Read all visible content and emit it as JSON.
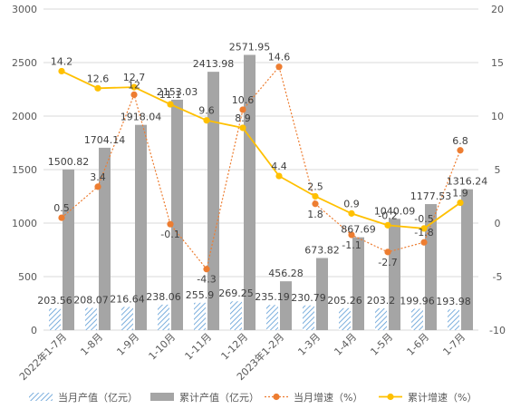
{
  "chart_data": {
    "type": "bar",
    "categories": [
      "2022年1-7月",
      "1-8月",
      "1-9月",
      "1-10月",
      "1-11月",
      "1-12月",
      "2023年1-2月",
      "1-3月",
      "1-4月",
      "1-5月",
      "1-6月",
      "1-7月"
    ],
    "series": [
      {
        "name": "当月产值（亿元）",
        "kind": "bar",
        "axis": "left",
        "color": "#5b9bd5",
        "values": [
          203.56,
          208.07,
          216.64,
          238.06,
          255.9,
          269.25,
          235.19,
          230.79,
          205.26,
          203.2,
          199.96,
          193.98
        ],
        "labels": [
          "203.56",
          "208.07",
          "216.64",
          "238.06",
          "255.9",
          "269.25",
          "235.19",
          "230.79",
          "205.26",
          "203.2",
          "199.96",
          "193.98"
        ]
      },
      {
        "name": "累计产值（亿元）",
        "kind": "bar",
        "axis": "left",
        "color": "#a5a5a5",
        "values": [
          1500.82,
          1704.14,
          1918.04,
          2153.03,
          2413.98,
          2571.95,
          456.28,
          673.82,
          867.69,
          1040.09,
          1177.53,
          1316.24
        ],
        "labels": [
          "1500.82",
          "1704.14",
          "1918.04",
          "2153.03",
          "2413.98",
          "2571.95",
          "456.28",
          "673.82",
          "867.69",
          "1040.09",
          "1177.53",
          "1316.24"
        ]
      },
      {
        "name": "当月增速（%）",
        "kind": "line",
        "axis": "right",
        "color": "#ed7d31",
        "values": [
          0.5,
          3.4,
          12,
          -0.1,
          -4.3,
          10.6,
          14.6,
          1.8,
          -1.1,
          -2.7,
          -1.8,
          6.8
        ],
        "labels": [
          "0.5",
          "3.4",
          "12",
          "-0.1",
          "-4.3",
          "10.6",
          "14.6",
          "1.8",
          "-1.1",
          "-2.7",
          "-1.8",
          "6.8"
        ]
      },
      {
        "name": "累计增速（%）",
        "kind": "line",
        "axis": "right",
        "color": "#ffc000",
        "values": [
          14.2,
          12.6,
          12.7,
          11.1,
          9.6,
          8.9,
          4.4,
          2.5,
          0.9,
          -0.2,
          -0.5,
          1.9
        ],
        "labels": [
          "14.2",
          "12.6",
          "12.7",
          "11.1",
          "9.6",
          "8.9",
          "4.4",
          "2.5",
          "0.9",
          "-0.2",
          "-0.5",
          "1.9"
        ]
      }
    ],
    "y_left": {
      "min": 0,
      "max": 3000,
      "ticks": [
        "0",
        "500",
        "1000",
        "1500",
        "2000",
        "2500",
        "3000"
      ]
    },
    "y_right": {
      "min": -10,
      "max": 20,
      "ticks": [
        "-10",
        "-5",
        "0",
        "5",
        "10",
        "15",
        "20"
      ]
    },
    "grid": true,
    "legend": "bottom"
  }
}
